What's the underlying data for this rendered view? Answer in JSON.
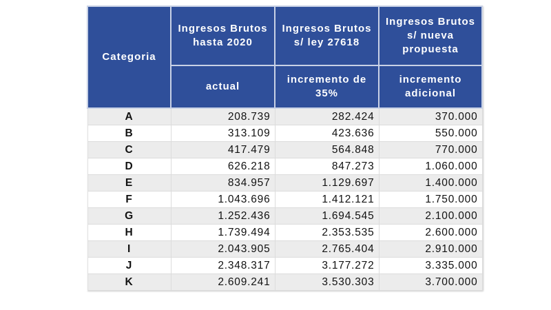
{
  "headers": {
    "categoria": "Categoria",
    "col1_top": "Ingresos Brutos hasta 2020",
    "col2_top": "Ingresos Brutos s/ ley 27618",
    "col3_top": "Ingresos Brutos s/ nueva propuesta",
    "col1_sub": "actual",
    "col2_sub": "incremento de 35%",
    "col3_sub": "incremento adicional"
  },
  "colors": {
    "header_bg": "#2f4f9a",
    "row_alt": "#ececec"
  },
  "rows": [
    {
      "cat": "A",
      "v1": "208.739",
      "v2": "282.424",
      "v3": "370.000"
    },
    {
      "cat": "B",
      "v1": "313.109",
      "v2": "423.636",
      "v3": "550.000"
    },
    {
      "cat": "C",
      "v1": "417.479",
      "v2": "564.848",
      "v3": "770.000"
    },
    {
      "cat": "D",
      "v1": "626.218",
      "v2": "847.273",
      "v3": "1.060.000"
    },
    {
      "cat": "E",
      "v1": "834.957",
      "v2": "1.129.697",
      "v3": "1.400.000"
    },
    {
      "cat": "F",
      "v1": "1.043.696",
      "v2": "1.412.121",
      "v3": "1.750.000"
    },
    {
      "cat": "G",
      "v1": "1.252.436",
      "v2": "1.694.545",
      "v3": "2.100.000"
    },
    {
      "cat": "H",
      "v1": "1.739.494",
      "v2": "2.353.535",
      "v3": "2.600.000"
    },
    {
      "cat": "I",
      "v1": "2.043.905",
      "v2": "2.765.404",
      "v3": "2.910.000"
    },
    {
      "cat": "J",
      "v1": "2.348.317",
      "v2": "3.177.272",
      "v3": "3.335.000"
    },
    {
      "cat": "K",
      "v1": "2.609.241",
      "v2": "3.530.303",
      "v3": "3.700.000"
    }
  ]
}
